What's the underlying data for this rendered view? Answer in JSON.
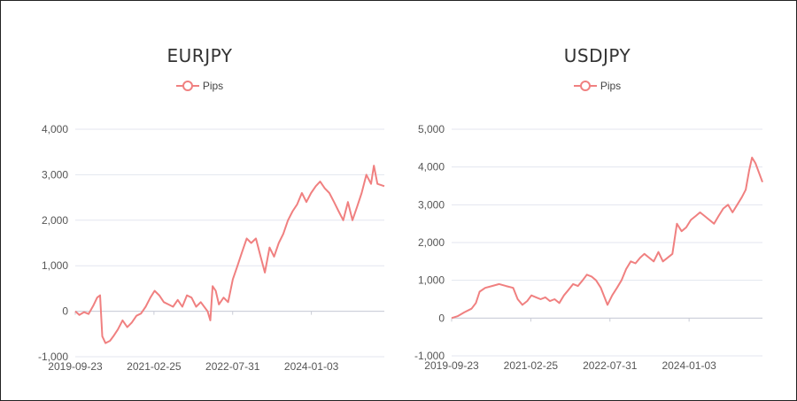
{
  "chart_data": [
    {
      "type": "line",
      "title": "EURJPY",
      "legend_position": "top-center",
      "grid": true,
      "ylim": [
        -1000,
        4000
      ],
      "yticks": [
        "4,000",
        "3,000",
        "2,000",
        "1,000",
        "0",
        "-1,000"
      ],
      "ytick_values": [
        4000,
        3000,
        2000,
        1000,
        0,
        -1000
      ],
      "xticks": [
        "2019-09-23",
        "2021-02-25",
        "2022-07-31",
        "2024-01-03"
      ],
      "xlim": [
        "2019-09-23",
        "2025-04-30"
      ],
      "series": [
        {
          "name": "Pips",
          "color": "#f08080",
          "points": [
            [
              "2019-09-23",
              0
            ],
            [
              "2019-10-20",
              -80
            ],
            [
              "2019-11-20",
              -20
            ],
            [
              "2019-12-20",
              -60
            ],
            [
              "2020-01-20",
              120
            ],
            [
              "2020-02-15",
              300
            ],
            [
              "2020-03-05",
              350
            ],
            [
              "2020-03-20",
              -550
            ],
            [
              "2020-04-10",
              -700
            ],
            [
              "2020-05-10",
              -650
            ],
            [
              "2020-06-01",
              -550
            ],
            [
              "2020-07-01",
              -400
            ],
            [
              "2020-08-01",
              -200
            ],
            [
              "2020-09-01",
              -350
            ],
            [
              "2020-10-01",
              -250
            ],
            [
              "2020-11-01",
              -100
            ],
            [
              "2020-12-01",
              -50
            ],
            [
              "2021-01-01",
              100
            ],
            [
              "2021-02-01",
              300
            ],
            [
              "2021-03-01",
              450
            ],
            [
              "2021-04-01",
              350
            ],
            [
              "2021-05-01",
              200
            ],
            [
              "2021-06-01",
              150
            ],
            [
              "2021-07-01",
              100
            ],
            [
              "2021-08-01",
              250
            ],
            [
              "2021-09-01",
              100
            ],
            [
              "2021-10-01",
              350
            ],
            [
              "2021-11-01",
              300
            ],
            [
              "2021-12-01",
              100
            ],
            [
              "2022-01-01",
              200
            ],
            [
              "2022-02-15",
              0
            ],
            [
              "2022-03-05",
              -200
            ],
            [
              "2022-03-20",
              550
            ],
            [
              "2022-04-10",
              450
            ],
            [
              "2022-05-01",
              150
            ],
            [
              "2022-06-01",
              300
            ],
            [
              "2022-07-01",
              200
            ],
            [
              "2022-08-01",
              700
            ],
            [
              "2022-09-01",
              1000
            ],
            [
              "2022-10-01",
              1300
            ],
            [
              "2022-11-01",
              1600
            ],
            [
              "2022-12-01",
              1500
            ],
            [
              "2023-01-01",
              1600
            ],
            [
              "2023-02-01",
              1200
            ],
            [
              "2023-03-01",
              850
            ],
            [
              "2023-04-01",
              1400
            ],
            [
              "2023-05-01",
              1200
            ],
            [
              "2023-06-01",
              1500
            ],
            [
              "2023-07-01",
              1700
            ],
            [
              "2023-08-01",
              2000
            ],
            [
              "2023-09-01",
              2200
            ],
            [
              "2023-10-01",
              2350
            ],
            [
              "2023-11-01",
              2600
            ],
            [
              "2023-12-01",
              2400
            ],
            [
              "2024-01-01",
              2600
            ],
            [
              "2024-02-01",
              2750
            ],
            [
              "2024-03-01",
              2850
            ],
            [
              "2024-04-01",
              2700
            ],
            [
              "2024-05-01",
              2600
            ],
            [
              "2024-06-01",
              2400
            ],
            [
              "2024-07-01",
              2200
            ],
            [
              "2024-08-01",
              2000
            ],
            [
              "2024-09-01",
              2400
            ],
            [
              "2024-10-01",
              2000
            ],
            [
              "2024-11-01",
              2300
            ],
            [
              "2024-12-01",
              2600
            ],
            [
              "2025-01-01",
              3000
            ],
            [
              "2025-02-01",
              2800
            ],
            [
              "2025-02-20",
              3200
            ],
            [
              "2025-03-15",
              2800
            ],
            [
              "2025-04-30",
              2750
            ]
          ]
        }
      ]
    },
    {
      "type": "line",
      "title": "USDJPY",
      "legend_position": "top-center",
      "grid": true,
      "ylim": [
        -1000,
        5000
      ],
      "yticks": [
        "5,000",
        "4,000",
        "3,000",
        "2,000",
        "1,000",
        "0",
        "-1,000"
      ],
      "ytick_values": [
        5000,
        4000,
        3000,
        2000,
        1000,
        0,
        -1000
      ],
      "xticks": [
        "2019-09-23",
        "2021-02-25",
        "2022-07-31",
        "2024-01-03"
      ],
      "xlim": [
        "2019-09-23",
        "2025-04-30"
      ],
      "series": [
        {
          "name": "Pips",
          "color": "#f08080",
          "points": [
            [
              "2019-09-23",
              0
            ],
            [
              "2019-11-01",
              50
            ],
            [
              "2019-12-15",
              150
            ],
            [
              "2020-02-01",
              250
            ],
            [
              "2020-03-01",
              400
            ],
            [
              "2020-03-25",
              700
            ],
            [
              "2020-05-01",
              800
            ],
            [
              "2020-06-15",
              850
            ],
            [
              "2020-08-01",
              900
            ],
            [
              "2020-09-15",
              850
            ],
            [
              "2020-11-01",
              800
            ],
            [
              "2020-12-01",
              500
            ],
            [
              "2021-01-01",
              350
            ],
            [
              "2021-02-01",
              450
            ],
            [
              "2021-03-01",
              600
            ],
            [
              "2021-04-01",
              550
            ],
            [
              "2021-05-01",
              500
            ],
            [
              "2021-06-01",
              550
            ],
            [
              "2021-07-01",
              450
            ],
            [
              "2021-08-01",
              500
            ],
            [
              "2021-09-01",
              400
            ],
            [
              "2021-10-01",
              600
            ],
            [
              "2021-11-01",
              750
            ],
            [
              "2021-12-01",
              900
            ],
            [
              "2022-01-01",
              850
            ],
            [
              "2022-02-01",
              1000
            ],
            [
              "2022-03-01",
              1150
            ],
            [
              "2022-04-01",
              1100
            ],
            [
              "2022-05-01",
              1000
            ],
            [
              "2022-06-01",
              800
            ],
            [
              "2022-07-15",
              350
            ],
            [
              "2022-08-15",
              600
            ],
            [
              "2022-09-15",
              800
            ],
            [
              "2022-10-15",
              1000
            ],
            [
              "2022-11-15",
              1300
            ],
            [
              "2022-12-15",
              1500
            ],
            [
              "2023-01-15",
              1450
            ],
            [
              "2023-02-15",
              1600
            ],
            [
              "2023-03-15",
              1700
            ],
            [
              "2023-04-15",
              1600
            ],
            [
              "2023-05-15",
              1500
            ],
            [
              "2023-06-15",
              1750
            ],
            [
              "2023-07-15",
              1500
            ],
            [
              "2023-08-15",
              1600
            ],
            [
              "2023-09-15",
              1700
            ],
            [
              "2023-10-15",
              2500
            ],
            [
              "2023-11-15",
              2300
            ],
            [
              "2023-12-15",
              2400
            ],
            [
              "2024-01-15",
              2600
            ],
            [
              "2024-02-15",
              2700
            ],
            [
              "2024-03-15",
              2800
            ],
            [
              "2024-04-15",
              2700
            ],
            [
              "2024-05-15",
              2600
            ],
            [
              "2024-06-15",
              2500
            ],
            [
              "2024-07-15",
              2700
            ],
            [
              "2024-08-15",
              2900
            ],
            [
              "2024-09-15",
              3000
            ],
            [
              "2024-10-15",
              2800
            ],
            [
              "2024-11-15",
              3000
            ],
            [
              "2024-12-15",
              3200
            ],
            [
              "2025-01-10",
              3400
            ],
            [
              "2025-02-01",
              3900
            ],
            [
              "2025-02-20",
              4250
            ],
            [
              "2025-03-15",
              4100
            ],
            [
              "2025-04-30",
              3600
            ]
          ]
        }
      ]
    }
  ]
}
